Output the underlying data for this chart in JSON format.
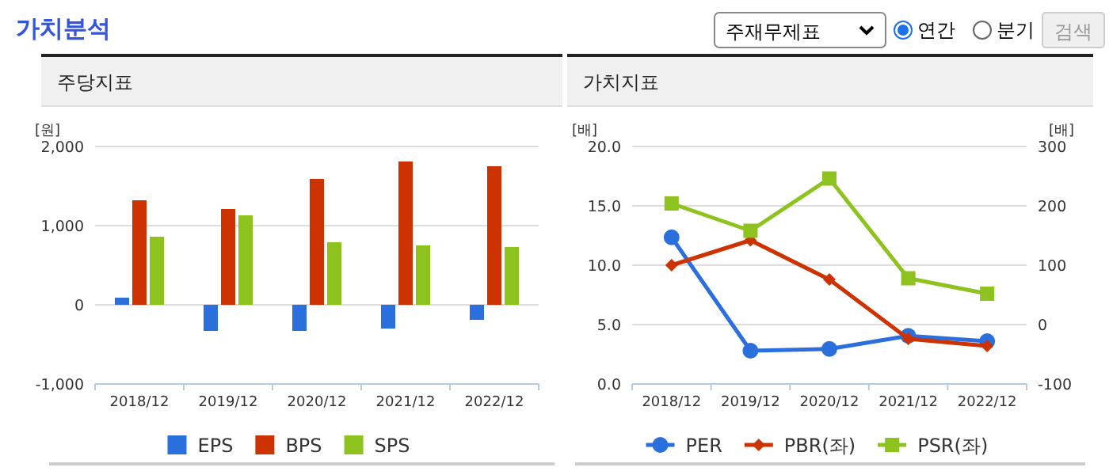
{
  "chart_data": [
    {
      "type": "other",
      "title": "가치분석",
      "annotations": [
        "주재무제표",
        "연간",
        "분기",
        "검색"
      ]
    },
    {
      "type": "bar",
      "title": "주당지표",
      "ylabel": "[원]",
      "categories": [
        "2018/12",
        "2019/12",
        "2020/12",
        "2021/12",
        "2022/12"
      ],
      "series": [
        {
          "name": "EPS",
          "color": "#2a6fdb",
          "values": [
            90,
            -330,
            -330,
            -300,
            -190
          ]
        },
        {
          "name": "BPS",
          "color": "#cc3300",
          "values": [
            1320,
            1210,
            1590,
            1810,
            1750
          ]
        },
        {
          "name": "SPS",
          "color": "#8dc21f",
          "values": [
            860,
            1130,
            790,
            750,
            730
          ]
        }
      ],
      "ylim": [
        -1000,
        2000
      ],
      "yticks": [
        {
          "value": -1000,
          "label": "-1,000"
        },
        0,
        {
          "value": 1000,
          "label": "1,000"
        },
        {
          "value": 2000,
          "label": "2,000"
        }
      ],
      "grid": "y",
      "legend": "bottom"
    },
    {
      "type": "line",
      "title": "가치지표",
      "ylabel": "[배]",
      "y2label": "[배]",
      "categories": [
        "2018/12",
        "2019/12",
        "2020/12",
        "2021/12",
        "2022/12"
      ],
      "series": [
        {
          "name": "PER",
          "color": "#2a6fdb",
          "axis": "y2",
          "marker": "circle",
          "values": [
            147,
            -44,
            -41,
            -19,
            -28
          ]
        },
        {
          "name": "PBR(좌)",
          "color": "#cc3300",
          "marker": "diamond",
          "values": [
            10.0,
            12.1,
            8.8,
            3.8,
            3.2
          ]
        },
        {
          "name": "PSR(좌)",
          "color": "#8dc21f",
          "marker": "square",
          "values": [
            15.2,
            12.9,
            17.3,
            8.9,
            7.6
          ]
        }
      ],
      "ylim": [
        0,
        20
      ],
      "yticks": [
        {
          "value": 0,
          "label": "0.0"
        },
        {
          "value": 5,
          "label": "5.0"
        },
        {
          "value": 10,
          "label": "10.0"
        },
        {
          "value": 15,
          "label": "15.0"
        },
        {
          "value": 20,
          "label": "20.0"
        }
      ],
      "y2lim": [
        -100,
        300
      ],
      "y2ticks": [
        -100,
        0,
        100,
        200,
        300
      ],
      "grid": "y",
      "legend": "bottom"
    }
  ]
}
